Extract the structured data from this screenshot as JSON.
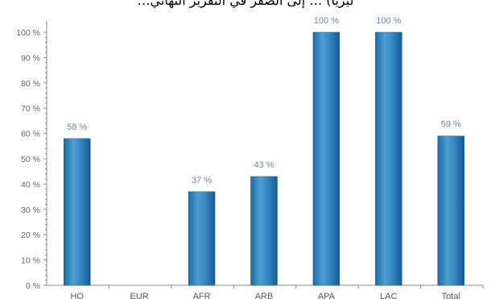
{
  "header_text": "…ليزيا) … إلى الصفر في التقرير النهائي",
  "chart_data": {
    "type": "bar",
    "categories": [
      "HQ",
      "EUR",
      "AFR",
      "ARB",
      "APA",
      "LAC",
      "Total"
    ],
    "values": [
      58,
      null,
      37,
      43,
      100,
      100,
      59
    ],
    "value_labels": [
      "58 %",
      "",
      "37 %",
      "43 %",
      "100 %",
      "100 %",
      "59 %"
    ],
    "yticks": [
      0,
      10,
      20,
      30,
      40,
      50,
      60,
      70,
      80,
      90,
      100
    ],
    "ytick_labels": [
      "0 %",
      "10 %",
      "20 %",
      "30 %",
      "40 %",
      "50 %",
      "60 %",
      "70 %",
      "80 %",
      "90 %",
      "100 %"
    ],
    "ylim": [
      0,
      100
    ],
    "grid": false,
    "bar_color": "#2f7fbf",
    "bar_highlight": "#5aa6d8",
    "bar_shadow": "#1a5e96"
  }
}
